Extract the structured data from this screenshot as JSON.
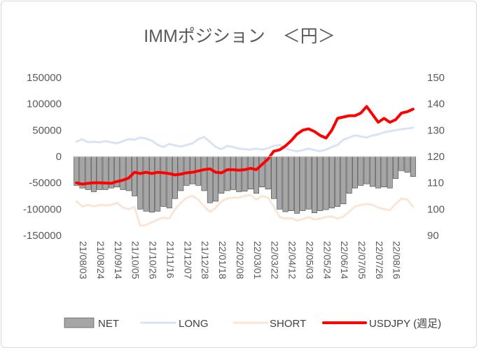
{
  "chart_data": {
    "type": "bar",
    "title": "IMMポジション　＜円＞",
    "x_tick_labels": [
      "21/08/03",
      "21/08/24",
      "21/09/14",
      "21/10/05",
      "21/10/26",
      "21/11/16",
      "21/12/07",
      "21/12/28",
      "22/01/18",
      "22/02/08",
      "22/03/01",
      "22/03/22",
      "22/04/12",
      "22/05/03",
      "22/05/24",
      "22/06/14",
      "22/07/05",
      "22/07/26",
      "22/08/16"
    ],
    "y_left": {
      "ylim": [
        -150000,
        150000
      ],
      "ticks": [
        150000,
        100000,
        50000,
        0,
        -50000,
        -100000,
        -150000
      ],
      "tick_labels": [
        "150000",
        "100000",
        "50000",
        "0",
        "-50000",
        "-100000",
        "-150000"
      ]
    },
    "y_right": {
      "ylim": [
        90,
        150
      ],
      "ticks": [
        150,
        140,
        130,
        120,
        110,
        100,
        90
      ],
      "tick_labels": [
        "150",
        "140",
        "130",
        "120",
        "110",
        "100",
        "90"
      ]
    },
    "grid": false,
    "legend_position": "bottom",
    "series": [
      {
        "name": "NET",
        "type": "bar",
        "axis": "left",
        "color": "#a6a6a6",
        "edge_color": "#404040",
        "values": [
          -55000,
          -60000,
          -63000,
          -67000,
          -63000,
          -63000,
          -60000,
          -58000,
          -63000,
          -65000,
          -75000,
          -100000,
          -104000,
          -106000,
          -104000,
          -95000,
          -98000,
          -80000,
          -65000,
          -55000,
          -52000,
          -55000,
          -65000,
          -88000,
          -85000,
          -70000,
          -65000,
          -63000,
          -67000,
          -66000,
          -62000,
          -70000,
          -58000,
          -62000,
          -80000,
          -100000,
          -105000,
          -103000,
          -108000,
          -103000,
          -100000,
          -107000,
          -103000,
          -101000,
          -98000,
          -95000,
          -90000,
          -70000,
          -60000,
          -55000,
          -52000,
          -57000,
          -60000,
          -58000,
          -60000,
          -42000,
          -27000,
          -30000,
          -38000
        ]
      },
      {
        "name": "LONG",
        "type": "line",
        "axis": "left",
        "color": "#dae3f3",
        "values": [
          28000,
          33000,
          27000,
          28000,
          27000,
          29000,
          27000,
          25000,
          29000,
          33000,
          32000,
          36000,
          34000,
          30000,
          22000,
          18000,
          24000,
          21000,
          19000,
          22000,
          25000,
          33000,
          37000,
          28000,
          18000,
          14000,
          20000,
          18000,
          15000,
          14000,
          13000,
          15000,
          13000,
          16000,
          20000,
          22000,
          15000,
          12000,
          10000,
          12000,
          15000,
          12000,
          10000,
          13000,
          18000,
          22000,
          32000,
          36000,
          40000,
          38000,
          36000,
          40000,
          42000,
          46000,
          48000,
          50000,
          52000,
          53000,
          55000
        ]
      },
      {
        "name": "SHORT",
        "type": "line",
        "axis": "left",
        "color": "#fbe5d6",
        "values": [
          -85000,
          -95000,
          -92000,
          -95000,
          -92000,
          -93000,
          -92000,
          -88000,
          -97000,
          -100000,
          -96000,
          -132000,
          -130000,
          -125000,
          -120000,
          -116000,
          -118000,
          -100000,
          -88000,
          -78000,
          -75000,
          -82000,
          -95000,
          -105000,
          -98000,
          -85000,
          -80000,
          -78000,
          -78000,
          -75000,
          -73000,
          -82000,
          -75000,
          -78000,
          -95000,
          -115000,
          -118000,
          -117000,
          -122000,
          -119000,
          -115000,
          -120000,
          -118000,
          -115000,
          -114000,
          -118000,
          -114000,
          -105000,
          -95000,
          -92000,
          -90000,
          -92000,
          -97000,
          -100000,
          -102000,
          -90000,
          -80000,
          -82000,
          -95000
        ]
      },
      {
        "name": "USDJPY (週足)",
        "type": "line",
        "axis": "right",
        "color": "#ff0000",
        "values": [
          110,
          109.5,
          109.8,
          110,
          110,
          109.9,
          109.8,
          110.5,
          111,
          111.8,
          114,
          113.5,
          114,
          113.5,
          114,
          113.8,
          113.5,
          113,
          113.3,
          113.8,
          114,
          114.5,
          115,
          115.3,
          114,
          113.8,
          115,
          115,
          114.8,
          115,
          115.5,
          115,
          117,
          119,
          122,
          122.5,
          124,
          126,
          128.5,
          130,
          130.5,
          129.5,
          128,
          127,
          130,
          134.5,
          135,
          135.5,
          135.5,
          136.5,
          139,
          136,
          133,
          134.5,
          133,
          134,
          136.5,
          137,
          138
        ]
      }
    ]
  }
}
